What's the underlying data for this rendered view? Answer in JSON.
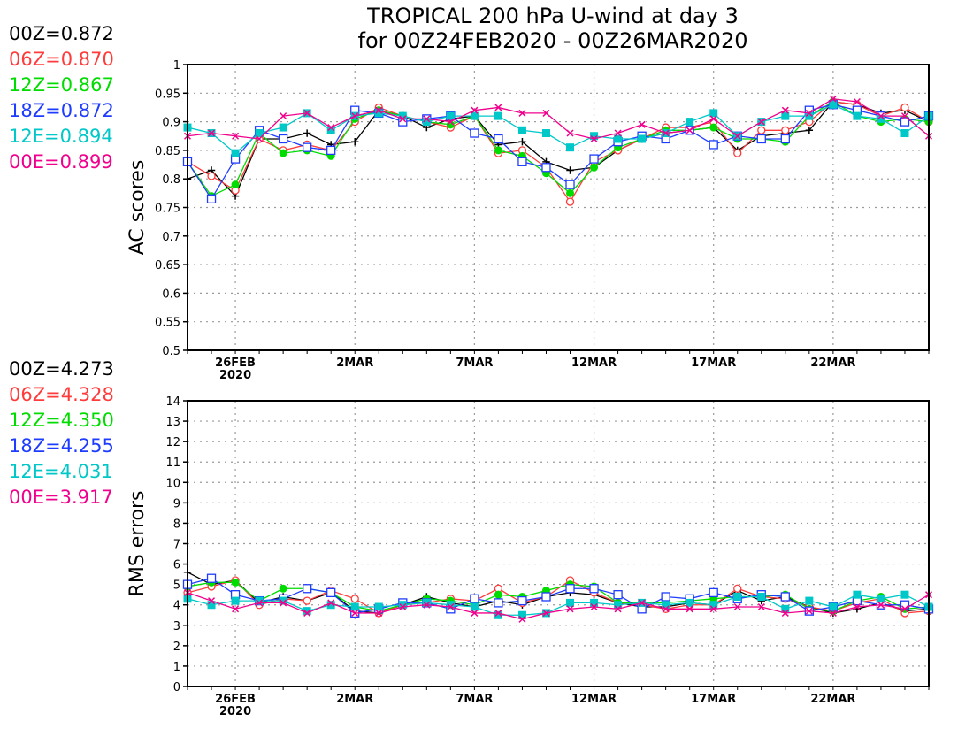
{
  "title": {
    "line1": "TROPICAL 200 hPa U-wind at day 3",
    "line2": "for 00Z24FEB2020 - 00Z26MAR2020"
  },
  "colors": {
    "00Z": "#000000",
    "06Z": "#ff3b3b",
    "12Z": "#00dc00",
    "18Z": "#1e3cff",
    "12E": "#00c8c8",
    "00E": "#f0008c"
  },
  "legend_ac": [
    {
      "label": "00Z=0.872",
      "key": "00Z"
    },
    {
      "label": "06Z=0.870",
      "key": "06Z"
    },
    {
      "label": "12Z=0.867",
      "key": "12Z"
    },
    {
      "label": "18Z=0.872",
      "key": "18Z"
    },
    {
      "label": "12E=0.894",
      "key": "12E"
    },
    {
      "label": "00E=0.899",
      "key": "00E"
    }
  ],
  "legend_rms": [
    {
      "label": "00Z=4.273",
      "key": "00Z"
    },
    {
      "label": "06Z=4.328",
      "key": "06Z"
    },
    {
      "label": "12Z=4.350",
      "key": "12Z"
    },
    {
      "label": "18Z=4.255",
      "key": "18Z"
    },
    {
      "label": "12E=4.031",
      "key": "12E"
    },
    {
      "label": "00E=3.917",
      "key": "00E"
    }
  ],
  "chart_data": [
    {
      "type": "line",
      "ylabel": "AC scores",
      "ylim": [
        0.5,
        1.0
      ],
      "yticks": [
        0.5,
        0.55,
        0.6,
        0.65,
        0.7,
        0.75,
        0.8,
        0.85,
        0.9,
        0.95,
        1
      ],
      "ytick_labels": [
        "0.5",
        "0.55",
        "0.6",
        "0.65",
        "0.7",
        "0.75",
        "0.8",
        "0.85",
        "0.9",
        "0.95",
        "1"
      ],
      "xlim": [
        0,
        31
      ],
      "xticks": [
        {
          "x": 2,
          "label": "26FEB",
          "sub": "2020"
        },
        {
          "x": 7,
          "label": "2MAR"
        },
        {
          "x": 12,
          "label": "7MAR"
        },
        {
          "x": 17,
          "label": "12MAR"
        },
        {
          "x": 22,
          "label": "17MAR"
        },
        {
          "x": 27,
          "label": "22MAR"
        }
      ],
      "x": [
        0,
        1,
        2,
        3,
        4,
        5,
        6,
        7,
        8,
        9,
        10,
        11,
        12,
        13,
        14,
        15,
        16,
        17,
        18,
        19,
        20,
        21,
        22,
        23,
        24,
        25,
        26,
        27,
        28,
        29,
        30,
        31
      ],
      "grid": true,
      "series": [
        {
          "key": "00Z",
          "marker": "plus",
          "values": [
            0.8,
            0.815,
            0.77,
            0.87,
            0.87,
            0.88,
            0.86,
            0.865,
            0.92,
            0.91,
            0.89,
            0.905,
            0.91,
            0.86,
            0.865,
            0.83,
            0.815,
            0.82,
            0.85,
            0.87,
            0.88,
            0.885,
            0.89,
            0.85,
            0.875,
            0.88,
            0.885,
            0.935,
            0.93,
            0.915,
            0.92,
            0.9
          ]
        },
        {
          "key": "06Z",
          "marker": "open-circle",
          "values": [
            0.83,
            0.805,
            0.78,
            0.87,
            0.85,
            0.86,
            0.85,
            0.9,
            0.925,
            0.91,
            0.9,
            0.89,
            0.91,
            0.845,
            0.85,
            0.82,
            0.76,
            0.83,
            0.85,
            0.87,
            0.89,
            0.89,
            0.9,
            0.845,
            0.885,
            0.885,
            0.9,
            0.935,
            0.93,
            0.91,
            0.925,
            0.9
          ]
        },
        {
          "key": "12Z",
          "marker": "filled-circle",
          "values": [
            0.83,
            0.77,
            0.79,
            0.88,
            0.845,
            0.85,
            0.84,
            0.905,
            0.92,
            0.91,
            0.9,
            0.895,
            0.91,
            0.85,
            0.84,
            0.81,
            0.775,
            0.82,
            0.855,
            0.87,
            0.885,
            0.885,
            0.89,
            0.87,
            0.87,
            0.865,
            0.91,
            0.935,
            0.91,
            0.9,
            0.905,
            0.9
          ]
        },
        {
          "key": "18Z",
          "marker": "open-square",
          "values": [
            0.83,
            0.765,
            0.835,
            0.885,
            0.87,
            0.855,
            0.85,
            0.92,
            0.915,
            0.9,
            0.905,
            0.91,
            0.88,
            0.87,
            0.83,
            0.82,
            0.79,
            0.835,
            0.865,
            0.875,
            0.87,
            0.885,
            0.86,
            0.875,
            0.87,
            0.87,
            0.92,
            0.93,
            0.92,
            0.91,
            0.9,
            0.91
          ]
        },
        {
          "key": "12E",
          "marker": "filled-square",
          "values": [
            0.89,
            0.88,
            0.845,
            0.88,
            0.89,
            0.915,
            0.885,
            0.91,
            0.915,
            0.91,
            0.9,
            0.91,
            0.91,
            0.91,
            0.885,
            0.88,
            0.855,
            0.875,
            0.87,
            0.87,
            0.88,
            0.9,
            0.915,
            0.875,
            0.9,
            0.91,
            0.91,
            0.93,
            0.91,
            0.905,
            0.88,
            0.91
          ]
        },
        {
          "key": "00E",
          "marker": "x",
          "values": [
            0.875,
            0.88,
            0.875,
            0.87,
            0.91,
            0.915,
            0.89,
            0.91,
            0.92,
            0.905,
            0.905,
            0.9,
            0.92,
            0.925,
            0.915,
            0.915,
            0.88,
            0.87,
            0.88,
            0.895,
            0.88,
            0.885,
            0.905,
            0.875,
            0.9,
            0.92,
            0.915,
            0.94,
            0.935,
            0.91,
            0.91,
            0.875
          ]
        }
      ]
    },
    {
      "type": "line",
      "ylabel": "RMS errors",
      "ylim": [
        0,
        14
      ],
      "yticks": [
        0,
        1,
        2,
        3,
        4,
        5,
        6,
        7,
        8,
        9,
        10,
        11,
        12,
        13,
        14
      ],
      "ytick_labels": [
        "0",
        "1",
        "2",
        "3",
        "4",
        "5",
        "6",
        "7",
        "8",
        "9",
        "10",
        "11",
        "12",
        "13",
        "14"
      ],
      "xlim": [
        0,
        31
      ],
      "xticks": [
        {
          "x": 2,
          "label": "26FEB",
          "sub": "2020"
        },
        {
          "x": 7,
          "label": "2MAR"
        },
        {
          "x": 12,
          "label": "7MAR"
        },
        {
          "x": 17,
          "label": "12MAR"
        },
        {
          "x": 22,
          "label": "17MAR"
        },
        {
          "x": 27,
          "label": "22MAR"
        }
      ],
      "x": [
        0,
        1,
        2,
        3,
        4,
        5,
        6,
        7,
        8,
        9,
        10,
        11,
        12,
        13,
        14,
        15,
        16,
        17,
        18,
        19,
        20,
        21,
        22,
        23,
        24,
        25,
        26,
        27,
        28,
        29,
        30,
        31
      ],
      "grid": true,
      "series": [
        {
          "key": "00Z",
          "marker": "plus",
          "values": [
            5.6,
            5.0,
            5.2,
            4.1,
            4.4,
            4.2,
            4.6,
            3.7,
            3.6,
            4.0,
            4.4,
            4.1,
            3.9,
            4.2,
            4.0,
            4.4,
            4.6,
            4.5,
            4.1,
            3.9,
            3.9,
            4.1,
            4.0,
            4.7,
            4.2,
            4.4,
            3.9,
            3.6,
            3.8,
            4.1,
            3.7,
            3.8
          ]
        },
        {
          "key": "06Z",
          "marker": "open-circle",
          "values": [
            4.6,
            4.9,
            5.2,
            4.0,
            4.3,
            4.2,
            4.7,
            4.3,
            3.6,
            4.0,
            4.1,
            4.3,
            4.2,
            4.8,
            4.1,
            4.4,
            5.2,
            4.6,
            4.1,
            4.0,
            3.8,
            4.0,
            4.0,
            4.8,
            4.4,
            4.3,
            3.9,
            3.7,
            4.1,
            4.3,
            3.6,
            3.7
          ]
        },
        {
          "key": "12Z",
          "marker": "filled-circle",
          "values": [
            4.9,
            5.1,
            5.1,
            4.2,
            4.8,
            4.8,
            4.6,
            3.9,
            3.7,
            4.0,
            4.3,
            4.2,
            4.0,
            4.5,
            4.4,
            4.7,
            5.0,
            4.9,
            4.1,
            4.1,
            4.1,
            4.2,
            4.3,
            4.4,
            4.4,
            4.5,
            3.8,
            3.7,
            4.2,
            4.4,
            3.8,
            3.9
          ]
        },
        {
          "key": "18Z",
          "marker": "open-square",
          "values": [
            5.0,
            5.3,
            4.5,
            4.2,
            4.3,
            4.8,
            4.6,
            3.6,
            3.8,
            4.1,
            4.1,
            3.8,
            4.3,
            4.1,
            4.2,
            4.4,
            4.8,
            4.8,
            4.5,
            3.8,
            4.4,
            4.3,
            4.6,
            4.3,
            4.5,
            4.4,
            3.7,
            3.9,
            4.2,
            4.0,
            4.0,
            3.8
          ]
        },
        {
          "key": "12E",
          "marker": "filled-square",
          "values": [
            4.3,
            4.0,
            4.2,
            4.2,
            4.2,
            3.7,
            4.0,
            3.9,
            3.9,
            4.0,
            4.1,
            4.0,
            3.9,
            3.5,
            3.5,
            3.6,
            4.1,
            4.1,
            4.0,
            4.1,
            4.0,
            4.1,
            4.0,
            4.4,
            4.4,
            3.8,
            4.2,
            3.9,
            4.5,
            4.3,
            4.5,
            3.9
          ]
        },
        {
          "key": "00E",
          "marker": "x",
          "values": [
            4.6,
            4.2,
            3.8,
            4.1,
            4.1,
            3.6,
            4.1,
            3.6,
            3.6,
            3.9,
            4.0,
            3.9,
            3.6,
            3.6,
            3.3,
            3.6,
            3.8,
            3.9,
            3.8,
            4.1,
            3.8,
            3.8,
            3.8,
            3.9,
            3.9,
            3.6,
            3.7,
            3.6,
            3.9,
            4.0,
            3.8,
            4.5
          ]
        }
      ]
    }
  ]
}
